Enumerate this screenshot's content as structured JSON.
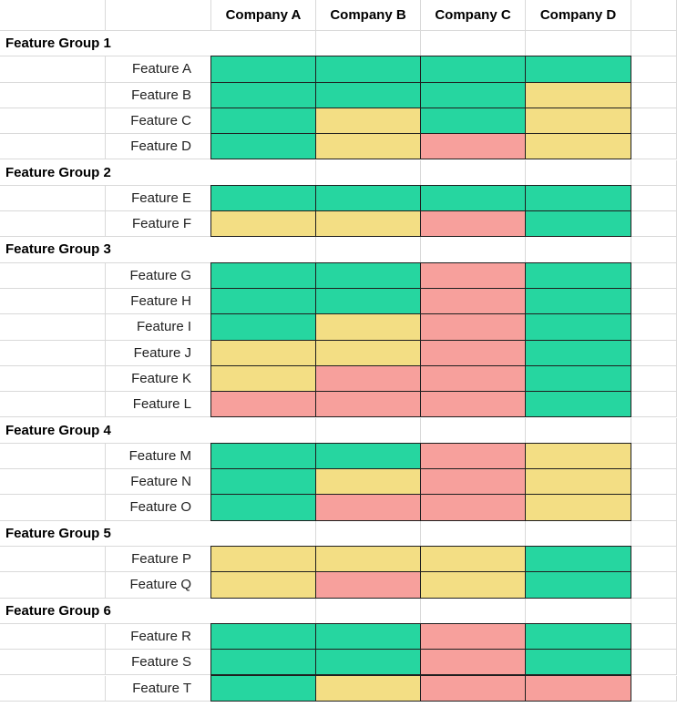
{
  "colors": {
    "green": "#26d6a0",
    "yellow": "#f3de84",
    "red": "#f7a09c"
  },
  "companies": [
    "Company A",
    "Company B",
    "Company C",
    "Company D"
  ],
  "rows": [
    {
      "type": "group",
      "label": "Feature Group 1"
    },
    {
      "type": "feature",
      "label": "Feature A",
      "ratings": [
        "green",
        "green",
        "green",
        "green"
      ]
    },
    {
      "type": "feature",
      "label": "Feature B",
      "ratings": [
        "green",
        "green",
        "green",
        "yellow"
      ]
    },
    {
      "type": "feature",
      "label": "Feature C",
      "ratings": [
        "green",
        "yellow",
        "green",
        "yellow"
      ]
    },
    {
      "type": "feature",
      "label": "Feature D",
      "ratings": [
        "green",
        "yellow",
        "red",
        "yellow"
      ]
    },
    {
      "type": "group",
      "label": "Feature Group 2"
    },
    {
      "type": "feature",
      "label": "Feature E",
      "ratings": [
        "green",
        "green",
        "green",
        "green"
      ]
    },
    {
      "type": "feature",
      "label": "Feature F",
      "ratings": [
        "yellow",
        "yellow",
        "red",
        "green"
      ]
    },
    {
      "type": "group",
      "label": "Feature Group 3"
    },
    {
      "type": "feature",
      "label": "Feature G",
      "ratings": [
        "green",
        "green",
        "red",
        "green"
      ]
    },
    {
      "type": "feature",
      "label": "Feature H",
      "ratings": [
        "green",
        "green",
        "red",
        "green"
      ]
    },
    {
      "type": "feature",
      "label": "Feature I",
      "ratings": [
        "green",
        "yellow",
        "red",
        "green"
      ]
    },
    {
      "type": "feature",
      "label": "Feature J",
      "ratings": [
        "yellow",
        "yellow",
        "red",
        "green"
      ]
    },
    {
      "type": "feature",
      "label": "Feature K",
      "ratings": [
        "yellow",
        "red",
        "red",
        "green"
      ]
    },
    {
      "type": "feature",
      "label": "Feature L",
      "ratings": [
        "red",
        "red",
        "red",
        "green"
      ]
    },
    {
      "type": "group",
      "label": "Feature Group 4"
    },
    {
      "type": "feature",
      "label": "Feature M",
      "ratings": [
        "green",
        "green",
        "red",
        "yellow"
      ]
    },
    {
      "type": "feature",
      "label": "Feature N",
      "ratings": [
        "green",
        "yellow",
        "red",
        "yellow"
      ]
    },
    {
      "type": "feature",
      "label": "Feature O",
      "ratings": [
        "green",
        "red",
        "red",
        "yellow"
      ]
    },
    {
      "type": "group",
      "label": "Feature Group 5"
    },
    {
      "type": "feature",
      "label": "Feature P",
      "ratings": [
        "yellow",
        "yellow",
        "yellow",
        "green"
      ]
    },
    {
      "type": "feature",
      "label": "Feature Q",
      "ratings": [
        "yellow",
        "red",
        "yellow",
        "green"
      ]
    },
    {
      "type": "group",
      "label": "Feature Group 6"
    },
    {
      "type": "feature",
      "label": "Feature R",
      "ratings": [
        "green",
        "green",
        "red",
        "green"
      ]
    },
    {
      "type": "feature",
      "label": "Feature S",
      "ratings": [
        "green",
        "green",
        "red",
        "green"
      ]
    },
    {
      "type": "feature",
      "label": "Feature T",
      "ratings": [
        "green",
        "yellow",
        "red",
        "red"
      ]
    }
  ]
}
